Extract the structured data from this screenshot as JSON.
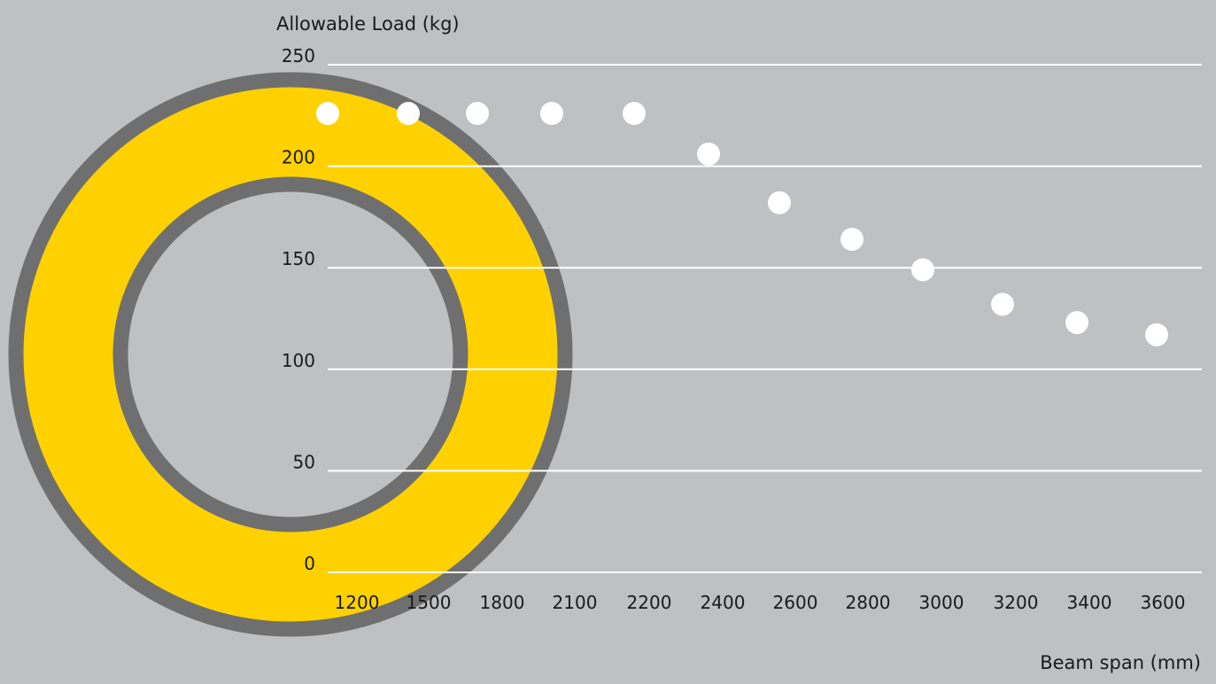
{
  "chart_data": {
    "type": "scatter",
    "title": "",
    "ylabel": "Allowable Load (kg)",
    "xlabel": "Beam span (mm)",
    "categories": [
      "1200",
      "1500",
      "1800",
      "2100",
      "2200",
      "2400",
      "2600",
      "2800",
      "3000",
      "3200",
      "3400",
      "3600"
    ],
    "values": [
      226,
      226,
      226,
      226,
      226,
      206,
      182,
      164,
      149,
      132,
      123,
      117
    ],
    "ylim": [
      0,
      250
    ],
    "yticks": [
      0,
      50,
      100,
      150,
      200,
      250
    ],
    "grid": true,
    "legend": "none",
    "colors": {
      "background": "#bfc0c2",
      "gridline": "#ffffff",
      "point": "#ffffff",
      "ring_fill": "#ffd100",
      "ring_stroke": "#6f6f70",
      "text": "#1a1a1a"
    }
  }
}
